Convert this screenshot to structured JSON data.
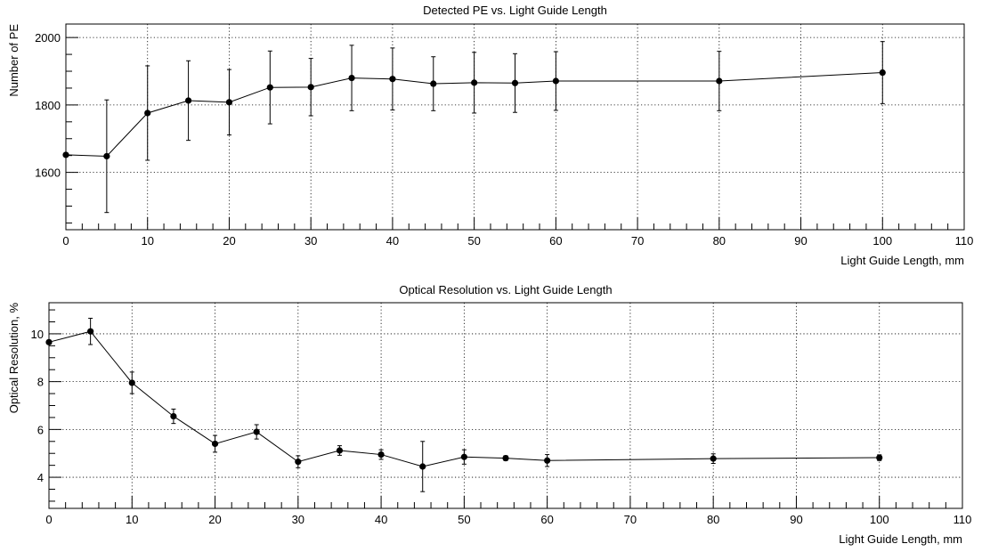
{
  "chart_data": [
    {
      "type": "line",
      "title": "Detected PE vs. Light Guide Length",
      "xlabel": "Light Guide Length, mm",
      "ylabel": "Number of PE",
      "xlim": [
        0,
        110
      ],
      "ylim": [
        1430,
        2040
      ],
      "x_ticks": [
        0,
        10,
        20,
        30,
        40,
        50,
        60,
        70,
        80,
        90,
        100,
        110
      ],
      "x_tick_labels": [
        "0",
        "10",
        "20",
        "30",
        "40",
        "50",
        "60",
        "70",
        "80",
        "90",
        "100",
        "110"
      ],
      "y_ticks": [
        1600,
        1800,
        2000
      ],
      "y_tick_labels": [
        "1600",
        "1800",
        "2000"
      ],
      "grid": true,
      "series": [
        {
          "x": [
            0,
            5,
            10,
            15,
            20,
            25,
            30,
            35,
            40,
            45,
            50,
            55,
            60,
            80,
            100
          ],
          "y": [
            1652,
            1648,
            1776,
            1813,
            1808,
            1852,
            1853,
            1880,
            1877,
            1863,
            1866,
            1865,
            1871,
            1871,
            1896
          ],
          "err": [
            0,
            167,
            140,
            118,
            97,
            108,
            85,
            97,
            92,
            80,
            90,
            87,
            87,
            88,
            92
          ]
        }
      ]
    },
    {
      "type": "line",
      "title": "Optical Resolution vs. Light Guide Length",
      "xlabel": "Light Guide Length, mm",
      "ylabel": "Optical Resolution, %",
      "xlim": [
        0,
        110
      ],
      "ylim": [
        2.7,
        11.3
      ],
      "x_ticks": [
        0,
        10,
        20,
        30,
        40,
        50,
        60,
        70,
        80,
        90,
        100,
        110
      ],
      "x_tick_labels": [
        "0",
        "10",
        "20",
        "30",
        "40",
        "50",
        "60",
        "70",
        "80",
        "90",
        "100",
        "110"
      ],
      "y_ticks": [
        4,
        6,
        8,
        10
      ],
      "y_tick_labels": [
        "4",
        "6",
        "8",
        "10"
      ],
      "grid": true,
      "series": [
        {
          "x": [
            0,
            5,
            10,
            15,
            20,
            25,
            30,
            35,
            40,
            45,
            50,
            55,
            60,
            80,
            100
          ],
          "y": [
            9.65,
            10.1,
            7.95,
            6.55,
            5.4,
            5.9,
            4.65,
            5.12,
            4.95,
            4.45,
            4.85,
            4.8,
            4.7,
            4.78,
            4.82
          ],
          "err": [
            0,
            0.55,
            0.45,
            0.3,
            0.35,
            0.3,
            0.25,
            0.2,
            0.2,
            1.05,
            0.3,
            0.1,
            0.25,
            0.2,
            0.12
          ]
        }
      ]
    }
  ]
}
